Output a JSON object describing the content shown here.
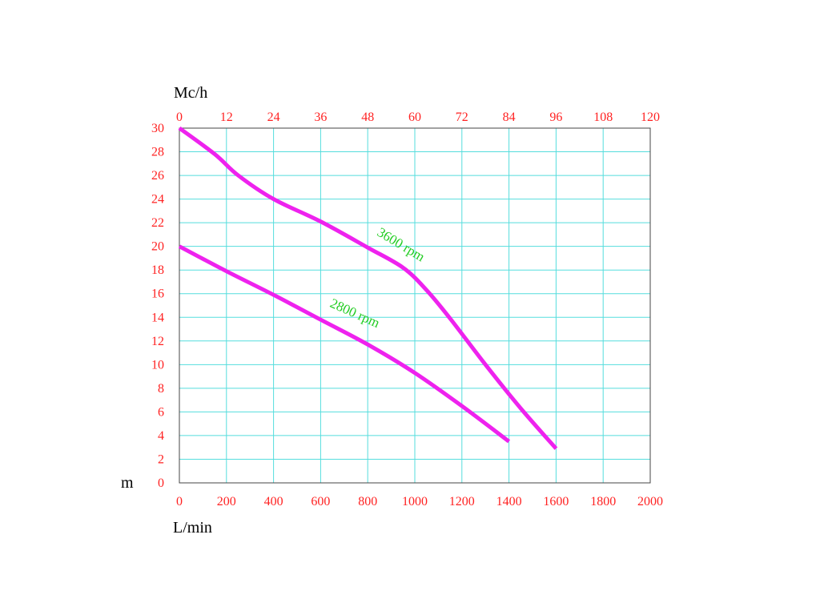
{
  "chart_data": {
    "type": "line",
    "x_unit_label": "L/min",
    "top_unit_label": "Mc/h",
    "y_unit_label": "m",
    "xlim": [
      0,
      2000
    ],
    "ylim": [
      0,
      30
    ],
    "x_ticks": [
      "0",
      "200",
      "400",
      "600",
      "800",
      "1000",
      "1200",
      "1400",
      "1600",
      "1800",
      "2000"
    ],
    "top_ticks": [
      "0",
      "12",
      "24",
      "36",
      "48",
      "60",
      "72",
      "84",
      "96",
      "108",
      "120"
    ],
    "y_ticks": [
      "0",
      "2",
      "4",
      "6",
      "8",
      "10",
      "12",
      "14",
      "16",
      "18",
      "20",
      "22",
      "24",
      "26",
      "28",
      "30"
    ],
    "grid": true,
    "series": [
      {
        "name": "3600 rpm",
        "x": [
          0,
          150,
          250,
          400,
          600,
          800,
          950,
          1050,
          1150,
          1300,
          1450,
          1600
        ],
        "y": [
          30,
          27.8,
          26,
          24,
          22.1,
          19.9,
          18.2,
          16.3,
          13.9,
          10,
          6.3,
          2.9
        ]
      },
      {
        "name": "2800 rpm",
        "x": [
          0,
          200,
          400,
          600,
          800,
          1000,
          1200,
          1400
        ],
        "y": [
          20,
          17.9,
          15.9,
          13.8,
          11.7,
          9.3,
          6.5,
          3.5
        ]
      }
    ],
    "colors": {
      "line": "#ee22ee",
      "grid": "#55dddd",
      "tick_text": "#ff2222",
      "label_text": "#22cc22",
      "frame": "#444444"
    }
  }
}
